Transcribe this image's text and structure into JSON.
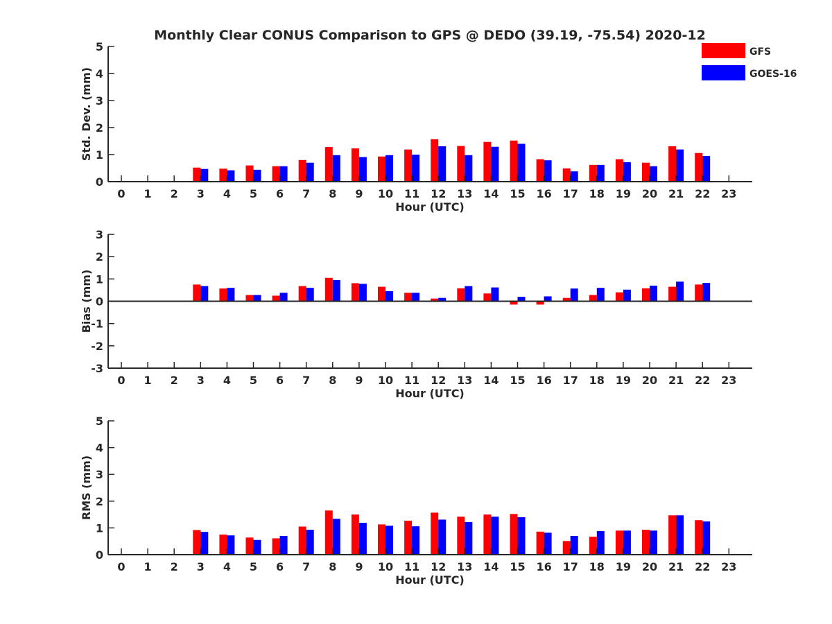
{
  "title": "Monthly Clear CONUS Comparison to GPS @ DEDO (39.19, -75.54) 2020-12",
  "legend": {
    "placement": "top-right",
    "items": [
      {
        "label": "GFS",
        "color": "#ff0000"
      },
      {
        "label": "GOES-16",
        "color": "#0000ff"
      }
    ]
  },
  "chart_data": [
    {
      "type": "bar",
      "xlabel": "Hour (UTC)",
      "ylabel": "Std. Dev. (mm)",
      "ylim": [
        0,
        5
      ],
      "yticks": [
        0,
        1,
        2,
        3,
        4,
        5
      ],
      "categories": [
        "0",
        "1",
        "2",
        "3",
        "4",
        "5",
        "6",
        "7",
        "8",
        "9",
        "10",
        "11",
        "12",
        "13",
        "14",
        "15",
        "16",
        "17",
        "18",
        "19",
        "20",
        "21",
        "22",
        "23"
      ],
      "grid": false,
      "series": [
        {
          "name": "GFS",
          "color": "#ff0000",
          "values": [
            null,
            null,
            null,
            0.52,
            0.48,
            0.6,
            0.57,
            0.8,
            1.28,
            1.23,
            0.93,
            1.19,
            1.57,
            1.32,
            1.47,
            1.52,
            0.83,
            0.49,
            0.62,
            0.83,
            0.7,
            1.31,
            1.06,
            null
          ]
        },
        {
          "name": "GOES-16",
          "color": "#0000ff",
          "values": [
            null,
            null,
            null,
            0.47,
            0.42,
            0.44,
            0.57,
            0.7,
            0.98,
            0.91,
            0.98,
            1.0,
            1.31,
            0.98,
            1.29,
            1.4,
            0.79,
            0.38,
            0.62,
            0.72,
            0.57,
            1.19,
            0.95,
            null
          ]
        }
      ]
    },
    {
      "type": "bar",
      "xlabel": "Hour (UTC)",
      "ylabel": "Bias (mm)",
      "ylim": [
        -3,
        3
      ],
      "yticks": [
        -3,
        -2,
        -1,
        0,
        1,
        2,
        3
      ],
      "categories": [
        "0",
        "1",
        "2",
        "3",
        "4",
        "5",
        "6",
        "7",
        "8",
        "9",
        "10",
        "11",
        "12",
        "13",
        "14",
        "15",
        "16",
        "17",
        "18",
        "19",
        "20",
        "21",
        "22",
        "23"
      ],
      "grid": false,
      "series": [
        {
          "name": "GFS",
          "color": "#ff0000",
          "values": [
            null,
            null,
            null,
            0.75,
            0.57,
            0.28,
            0.25,
            0.68,
            1.05,
            0.81,
            0.65,
            0.38,
            0.12,
            0.58,
            0.35,
            -0.15,
            -0.15,
            0.15,
            0.28,
            0.4,
            0.58,
            0.65,
            0.75,
            null
          ]
        },
        {
          "name": "GOES-16",
          "color": "#0000ff",
          "values": [
            null,
            null,
            null,
            0.68,
            0.6,
            0.28,
            0.38,
            0.6,
            0.95,
            0.78,
            0.45,
            0.38,
            0.15,
            0.68,
            0.62,
            0.2,
            0.22,
            0.57,
            0.6,
            0.52,
            0.7,
            0.88,
            0.82,
            null
          ]
        }
      ]
    },
    {
      "type": "bar",
      "xlabel": "Hour (UTC)",
      "ylabel": "RMS (mm)",
      "ylim": [
        0,
        5
      ],
      "yticks": [
        0,
        1,
        2,
        3,
        4,
        5
      ],
      "categories": [
        "0",
        "1",
        "2",
        "3",
        "4",
        "5",
        "6",
        "7",
        "8",
        "9",
        "10",
        "11",
        "12",
        "13",
        "14",
        "15",
        "16",
        "17",
        "18",
        "19",
        "20",
        "21",
        "22",
        "23"
      ],
      "grid": false,
      "series": [
        {
          "name": "GFS",
          "color": "#ff0000",
          "values": [
            null,
            null,
            null,
            0.92,
            0.75,
            0.64,
            0.61,
            1.05,
            1.65,
            1.5,
            1.13,
            1.27,
            1.57,
            1.42,
            1.5,
            1.52,
            0.86,
            0.51,
            0.67,
            0.9,
            0.93,
            1.47,
            1.29,
            null
          ]
        },
        {
          "name": "GOES-16",
          "color": "#0000ff",
          "values": [
            null,
            null,
            null,
            0.85,
            0.72,
            0.55,
            0.7,
            0.93,
            1.34,
            1.19,
            1.08,
            1.06,
            1.31,
            1.22,
            1.42,
            1.4,
            0.82,
            0.7,
            0.88,
            0.9,
            0.9,
            1.47,
            1.24,
            null
          ]
        }
      ]
    }
  ]
}
